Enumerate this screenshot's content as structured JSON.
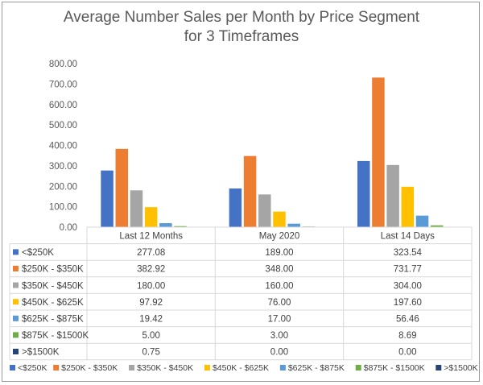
{
  "chart_data": {
    "type": "bar",
    "title_line1": "Average Number Sales per Month by Price Segment",
    "title_line2": "for 3 Timeframes",
    "categories": [
      "Last 12 Months",
      "May 2020",
      "Last 14 Days"
    ],
    "ylim": [
      0,
      800
    ],
    "y_ticks": [
      "0.00",
      "100.00",
      "200.00",
      "300.00",
      "400.00",
      "500.00",
      "600.00",
      "700.00",
      "800.00"
    ],
    "grid": false,
    "legend_position": "bottom",
    "series": [
      {
        "name": "<$250K",
        "color": "#4472C4",
        "values": [
          277.08,
          189.0,
          323.54
        ],
        "labels": [
          "277.08",
          "189.00",
          "323.54"
        ]
      },
      {
        "name": "$250K - $350K",
        "color": "#ED7D31",
        "values": [
          382.92,
          348.0,
          731.77
        ],
        "labels": [
          "382.92",
          "348.00",
          "731.77"
        ]
      },
      {
        "name": "$350K - $450K",
        "color": "#A5A5A5",
        "values": [
          180.0,
          160.0,
          304.0
        ],
        "labels": [
          "180.00",
          "160.00",
          "304.00"
        ]
      },
      {
        "name": "$450K - $625K",
        "color": "#FFC000",
        "values": [
          97.92,
          76.0,
          197.6
        ],
        "labels": [
          "97.92",
          "76.00",
          "197.60"
        ]
      },
      {
        "name": "$625K - $875K",
        "color": "#5B9BD5",
        "values": [
          19.42,
          17.0,
          56.46
        ],
        "labels": [
          "19.42",
          "17.00",
          "56.46"
        ]
      },
      {
        "name": "$875K - $1500K",
        "color": "#70AD47",
        "values": [
          5.0,
          3.0,
          8.69
        ],
        "labels": [
          "5.00",
          "3.00",
          "8.69"
        ]
      },
      {
        "name": ">$1500K",
        "color": "#264478",
        "values": [
          0.75,
          0.0,
          0.0
        ],
        "labels": [
          "0.75",
          "0.00",
          "0.00"
        ]
      }
    ]
  }
}
